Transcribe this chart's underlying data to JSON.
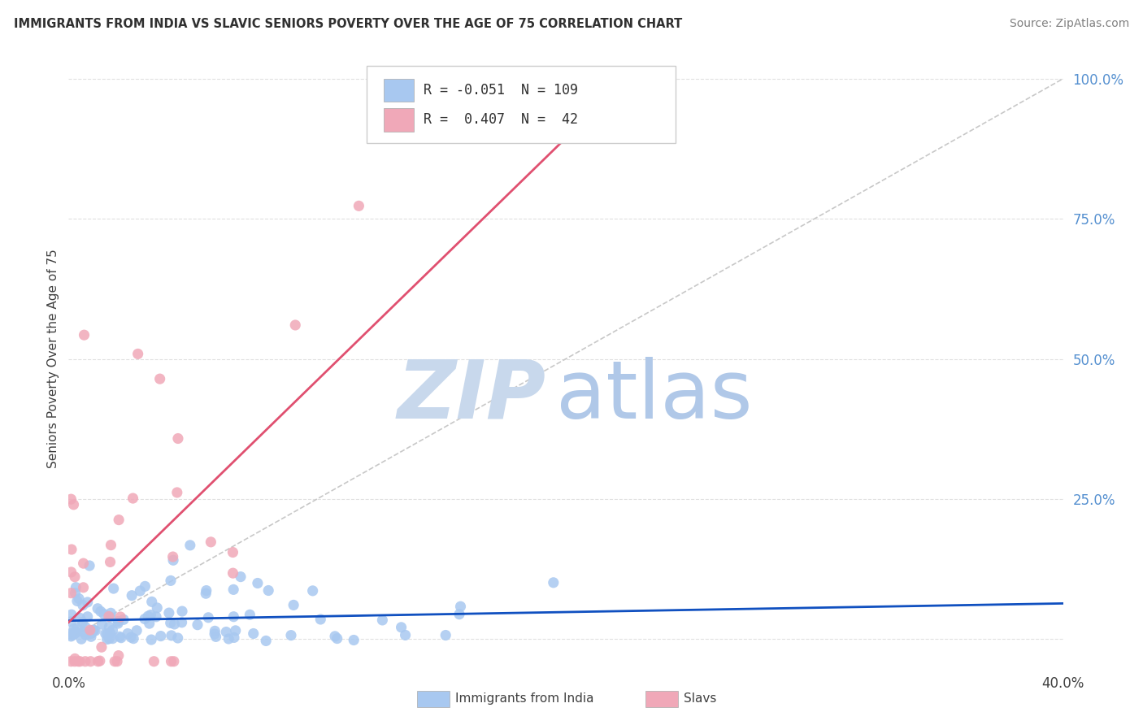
{
  "title": "IMMIGRANTS FROM INDIA VS SLAVIC SENIORS POVERTY OVER THE AGE OF 75 CORRELATION CHART",
  "source": "Source: ZipAtlas.com",
  "ylabel": "Seniors Poverty Over the Age of 75",
  "xlim": [
    0.0,
    0.4
  ],
  "ylim": [
    -0.05,
    1.05
  ],
  "india_R": -0.051,
  "india_N": 109,
  "slavic_R": 0.407,
  "slavic_N": 42,
  "india_color": "#a8c8f0",
  "slavic_color": "#f0a8b8",
  "india_line_color": "#1050c0",
  "slavic_line_color": "#e05070",
  "diagonal_color": "#c8c8c8",
  "watermark_zip_color": "#c8d8ec",
  "watermark_atlas_color": "#b0c8e8",
  "grid_color": "#e0e0e0",
  "background_color": "#ffffff",
  "legend_india_color": "#a8c8f0",
  "legend_slavic_color": "#f0a8b8",
  "legend_R_india": "R = -0.051",
  "legend_N_india": "N = 109",
  "legend_R_slavic": "R =  0.407",
  "legend_N_slavic": "N =  42"
}
